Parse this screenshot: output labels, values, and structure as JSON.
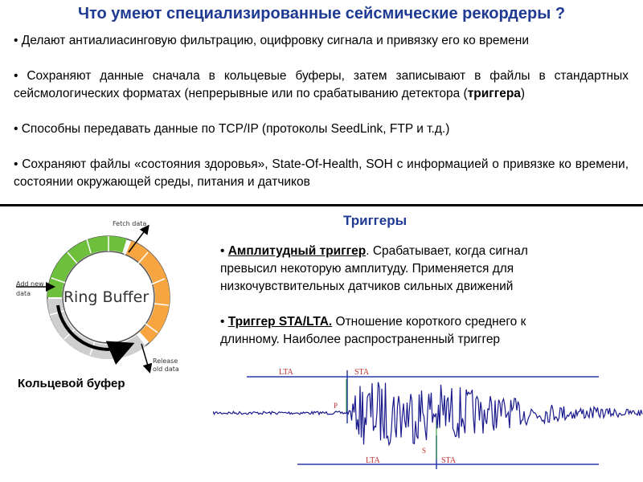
{
  "title": "Что умеют специализированные сейсмические рекордеры ?",
  "bullets": [
    {
      "text": "• Делают антиалиасинговую фильтрацию, оцифровку сигнала и привязку его ко времени"
    },
    {
      "pre": "• Сохраняют данные сначала в кольцевые буферы, затем записывают в файлы в стандартных сейсмологических форматах (непрерывные или по срабатыванию детектора (",
      "bold": "триггера",
      "post": ")"
    },
    {
      "text": "• Способны передавать данные по TCP/IP (протоколы SeedLink, FTP и т.д.)"
    },
    {
      "text": "• Сохраняют файлы «состояния здоровья», State-Of-Health, SOH с информацией о привязке ко времени, состоянии окружающей среды, питания и датчиков"
    }
  ],
  "triggers": {
    "title": "Триггеры",
    "items": [
      {
        "bullet": "• ",
        "head": "Амплитудный триггер",
        "rest": ". Срабатывает, когда сигнал превысил некоторую амплитуду. Применяется для низкочувствительных датчиков сильных движений"
      },
      {
        "bullet": "• ",
        "head": "Триггер STA/LTA.",
        "rest": " Отношение короткого среднего к длинному. Наиболее распространенный триггер"
      }
    ]
  },
  "ring_buffer": {
    "center_label": "Ring Buffer",
    "fetch_label": "Fetch data",
    "add_label_1": "Add new",
    "add_label_2": "data",
    "release_label_1": "Release",
    "release_label_2": "old data",
    "caption": "Кольцевой буфер",
    "colors": {
      "green": "#6ec03c",
      "orange": "#f7a540",
      "gray": "#cfcfcf"
    }
  },
  "seismogram": {
    "lta_top": "LTA",
    "sta_top": "STA",
    "lta_bottom": "LTA",
    "sta_bottom": "STA",
    "p_label": "P",
    "s_label": "S",
    "trace_color": "#1a1a8c",
    "line_color": "#2a3aa8"
  }
}
